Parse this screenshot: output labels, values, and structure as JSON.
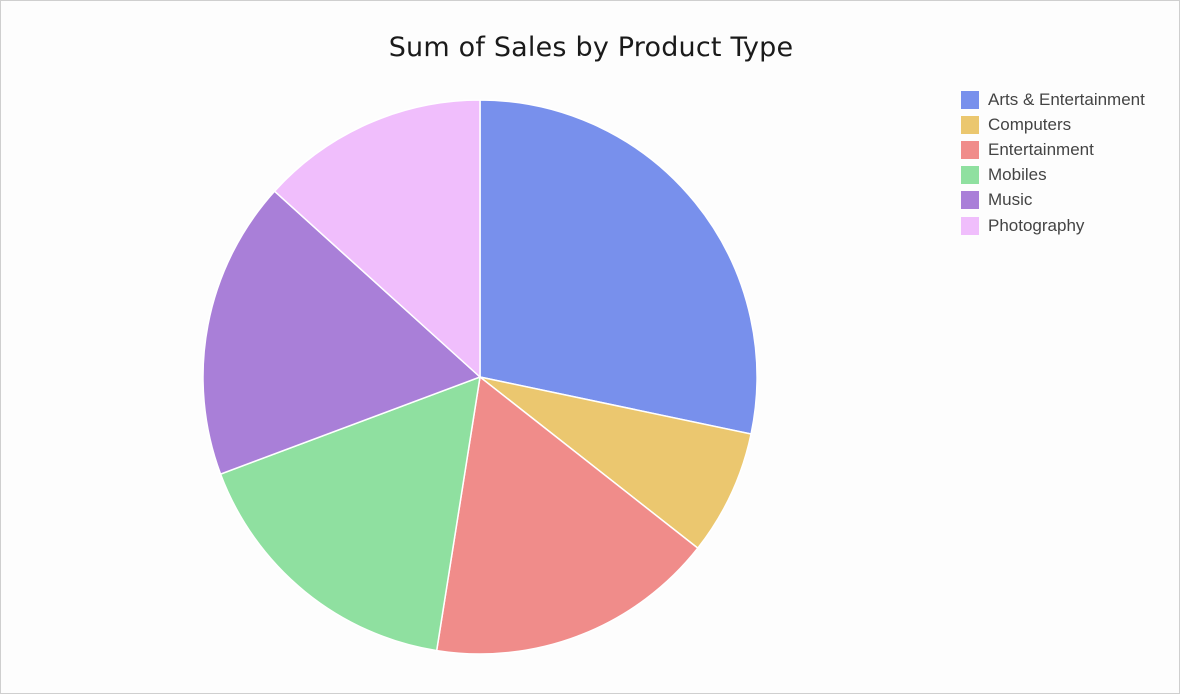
{
  "chart_data": {
    "type": "pie",
    "title": "Sum of Sales by Product Type",
    "legend_position": "top-right",
    "slices": [
      {
        "label": "Arts & Entertainment",
        "value": 28.3,
        "color": "#7890ec"
      },
      {
        "label": "Computers",
        "value": 7.3,
        "color": "#ebc76f"
      },
      {
        "label": "Entertainment",
        "value": 16.9,
        "color": "#f08c8a"
      },
      {
        "label": "Mobiles",
        "value": 16.8,
        "color": "#8fe0a0"
      },
      {
        "label": "Music",
        "value": 17.4,
        "color": "#a97fd8"
      },
      {
        "label": "Photography",
        "value": 13.3,
        "color": "#f0befc"
      }
    ]
  }
}
